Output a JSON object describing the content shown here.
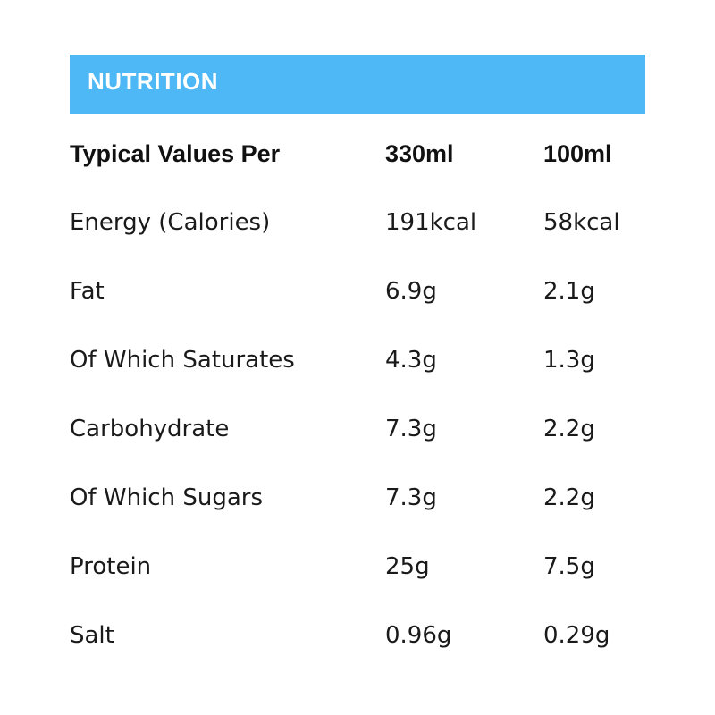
{
  "header": {
    "title": "NUTRITION"
  },
  "table": {
    "columns": [
      "Typical Values Per",
      "330ml",
      "100ml"
    ],
    "rows": [
      [
        "Energy (Calories)",
        "191kcal",
        "58kcal"
      ],
      [
        "Fat",
        "6.9g",
        "2.1g"
      ],
      [
        "Of Which Saturates",
        "4.3g",
        "1.3g"
      ],
      [
        "Carbohydrate",
        "7.3g",
        "2.2g"
      ],
      [
        "Of Which Sugars",
        "7.3g",
        "2.2g"
      ],
      [
        "Protein",
        "25g",
        "7.5g"
      ],
      [
        "Salt",
        "0.96g",
        "0.29g"
      ]
    ]
  },
  "colors": {
    "banner": "#4db8f5",
    "banner_text": "#ffffff",
    "text": "#1a1a1a"
  }
}
